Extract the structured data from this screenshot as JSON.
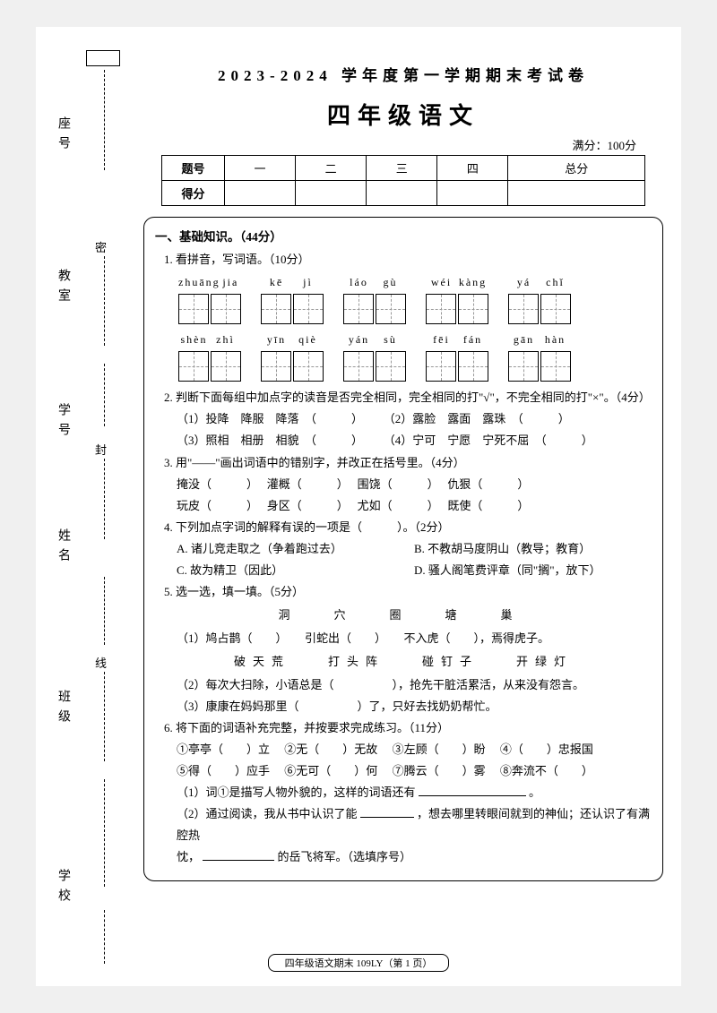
{
  "binding": {
    "labels": [
      "座号",
      "教室",
      "学号",
      "姓名",
      "班级",
      "学校"
    ],
    "seals": [
      "密",
      "封",
      "线"
    ],
    "box_present": true
  },
  "header": {
    "title1": "2023-2024 学年度第一学期期末考试卷",
    "title2": "四年级语文",
    "fullmark": "满分：100分"
  },
  "score_table": {
    "row1": [
      "题号",
      "一",
      "二",
      "三",
      "四",
      "总分"
    ],
    "row2_label": "得分"
  },
  "section1": {
    "title": "一、基础知识。（44分）",
    "q1": {
      "title": "1. 看拼音，写词语。（10分）",
      "row1": [
        {
          "py": [
            "zhuāng",
            "jia"
          ]
        },
        {
          "py": [
            "kē",
            "jì"
          ]
        },
        {
          "py": [
            "láo",
            "gù"
          ]
        },
        {
          "py": [
            "wéi",
            "kàng"
          ]
        },
        {
          "py": [
            "yá",
            "chǐ"
          ]
        }
      ],
      "row2": [
        {
          "py": [
            "shèn",
            "zhì"
          ]
        },
        {
          "py": [
            "yīn",
            "qiè"
          ]
        },
        {
          "py": [
            "yán",
            "sù"
          ]
        },
        {
          "py": [
            "fēi",
            "fán"
          ]
        },
        {
          "py": [
            "gān",
            "hàn"
          ]
        }
      ]
    },
    "q2": {
      "title": "2. 判断下面每组中加点字的读音是否完全相同，完全相同的打\"√\"，不完全相同的打\"×\"。（4分）",
      "items": [
        "（1）投降　降服　降落　（　　　）",
        "（2）露脸　露面　露珠　（　　　）",
        "（3）照相　相册　相貌　（　　　）",
        "（4）宁可　宁愿　宁死不屈　（　　　）"
      ]
    },
    "q3": {
      "title": "3. 用\"——\"画出词语中的错别字，并改正在括号里。（4分）",
      "items": [
        "掩没（　　　）",
        "灌概（　　　）",
        "围饶（　　　）",
        "仇狠（　　　）",
        "玩皮（　　　）",
        "身区（　　　）",
        "尤如（　　　）",
        "既使（　　　）"
      ]
    },
    "q4": {
      "title": "4. 下列加点字词的解释有误的一项是（　　　）。（2分）",
      "opts": [
        "A. 诸儿竞走取之（争着跑过去）",
        "B. 不教胡马度阴山（教导；教育）",
        "C. 故为精卫（因此）",
        "D. 骚人阁笔费评章（同\"搁\"，放下）"
      ]
    },
    "q5": {
      "title": "5. 选一选，填一填。（5分）",
      "bank1": "洞　穴　圈　塘　巢",
      "item1": "（1）鸠占鹊（　　）　　引蛇出（　　）　　不入虎（　　），焉得虎子。",
      "bank2": "破天荒　　打头阵　　碰钉子　　开绿灯",
      "item2": "（2）每次大扫除，小语总是（　　　　　），抢先干脏活累活，从来没有怨言。",
      "item3": "（3）康康在妈妈那里（　　　　　）了，只好去找奶奶帮忙。"
    },
    "q6": {
      "title": "6. 将下面的词语补充完整，并按要求完成练习。（11分）",
      "items": [
        "①亭亭（　　）立",
        "②无（　　）无故",
        "③左顾（　　）盼",
        "④（　　）忠报国",
        "⑤得（　　）应手",
        "⑥无可（　　）何",
        "⑦腾云（　　）雾",
        "⑧奔流不（　　）"
      ],
      "sub1_a": "（1）词①是描写人物外貌的，这样的词语还有",
      "sub1_b": "。",
      "sub2_a": "（2）通过阅读，我从书中认识了能",
      "sub2_b": "，想去哪里转眼间就到的神仙；还认识了有满腔热",
      "sub2_c": "忱，",
      "sub2_d": "的岳飞将军。（选填序号）"
    }
  },
  "footer": "四年级语文期末 109LY（第 1 页）"
}
